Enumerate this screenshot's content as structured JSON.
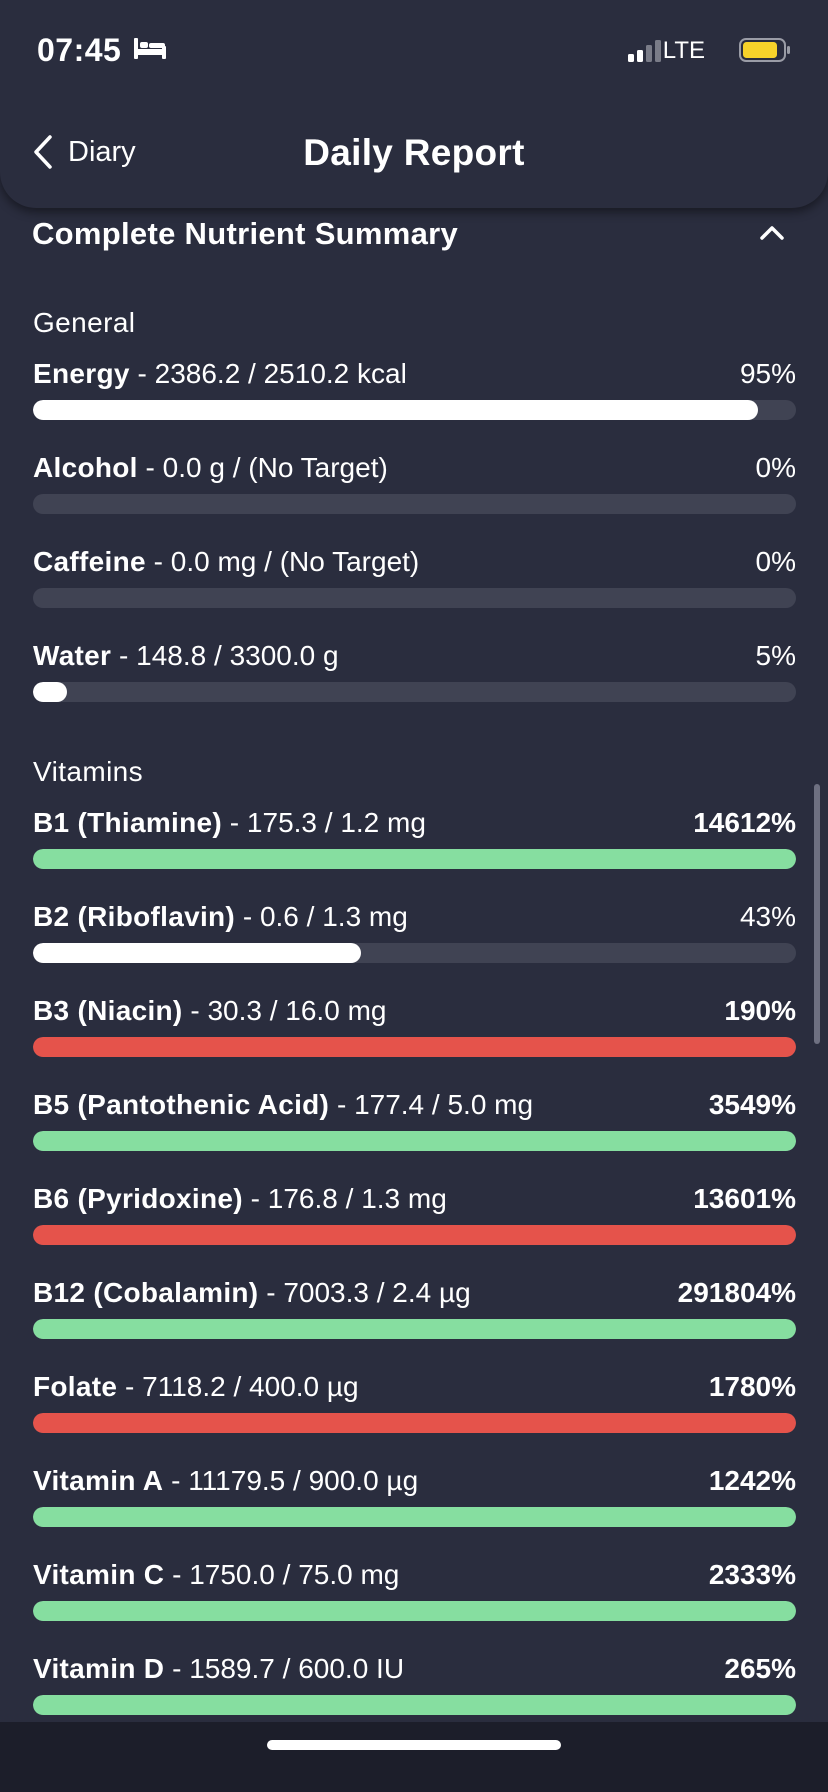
{
  "status_bar": {
    "time": "07:45",
    "network": "LTE",
    "battery_color": "#f7d22a"
  },
  "nav": {
    "back_label": "Diary",
    "title": "Daily Report"
  },
  "section": {
    "title": "Complete Nutrient Summary",
    "collapse_icon": "chevron-up-icon"
  },
  "colors": {
    "background": "#2a2d3e",
    "track": "#404353",
    "neutral_fill": "#ffffff",
    "good_fill": "#86dea0",
    "warning_fill": "#e5534b"
  },
  "groups": [
    {
      "title": "General",
      "items": [
        {
          "name": "Energy",
          "sep": " - ",
          "amount": "2386.2 / 2510.2 kcal",
          "percent": "95%",
          "progress": 0.95,
          "status": "neutral",
          "bold_pct": false
        },
        {
          "name": "Alcohol",
          "sep": " - ",
          "amount": "0.0 g / (No Target)",
          "percent": "0%",
          "progress": 0,
          "status": "neutral",
          "bold_pct": false
        },
        {
          "name": "Caffeine",
          "sep": " - ",
          "amount": "0.0 mg / (No Target)",
          "percent": "0%",
          "progress": 0,
          "status": "neutral",
          "bold_pct": false
        },
        {
          "name": "Water",
          "sep": " - ",
          "amount": "148.8 / 3300.0 g",
          "percent": "5%",
          "progress": 0.045,
          "status": "neutral",
          "bold_pct": false
        }
      ]
    },
    {
      "title": "Vitamins",
      "items": [
        {
          "name": "B1 (Thiamine)",
          "sep": " - ",
          "amount": "175.3 / 1.2 mg",
          "percent": "14612%",
          "progress": 1,
          "status": "good",
          "bold_pct": true
        },
        {
          "name": "B2 (Riboflavin)",
          "sep": " - ",
          "amount": "0.6 / 1.3 mg",
          "percent": "43%",
          "progress": 0.43,
          "status": "neutral",
          "bold_pct": false
        },
        {
          "name": "B3 (Niacin)",
          "sep": " - ",
          "amount": "30.3 / 16.0 mg",
          "percent": "190%",
          "progress": 1,
          "status": "warning",
          "bold_pct": true
        },
        {
          "name": "B5 (Pantothenic Acid)",
          "sep": " - ",
          "amount": "177.4 / 5.0 mg",
          "percent": "3549%",
          "progress": 1,
          "status": "good",
          "bold_pct": true
        },
        {
          "name": "B6 (Pyridoxine)",
          "sep": " - ",
          "amount": "176.8 / 1.3 mg",
          "percent": "13601%",
          "progress": 1,
          "status": "warning",
          "bold_pct": true
        },
        {
          "name": "B12 (Cobalamin)",
          "sep": " - ",
          "amount": "7003.3 / 2.4 µg",
          "percent": "291804%",
          "progress": 1,
          "status": "good",
          "bold_pct": true
        },
        {
          "name": "Folate",
          "sep": " - ",
          "amount": "7118.2 / 400.0 µg",
          "percent": "1780%",
          "progress": 1,
          "status": "warning",
          "bold_pct": true
        },
        {
          "name": "Vitamin A",
          "sep": " - ",
          "amount": "11179.5 / 900.0 µg",
          "percent": "1242%",
          "progress": 1,
          "status": "good",
          "bold_pct": true
        },
        {
          "name": "Vitamin C",
          "sep": " - ",
          "amount": "1750.0 / 75.0 mg",
          "percent": "2333%",
          "progress": 1,
          "status": "good",
          "bold_pct": true
        },
        {
          "name": "Vitamin D",
          "sep": " - ",
          "amount": "1589.7 / 600.0 IU",
          "percent": "265%",
          "progress": 1,
          "status": "good",
          "bold_pct": true
        }
      ]
    }
  ]
}
